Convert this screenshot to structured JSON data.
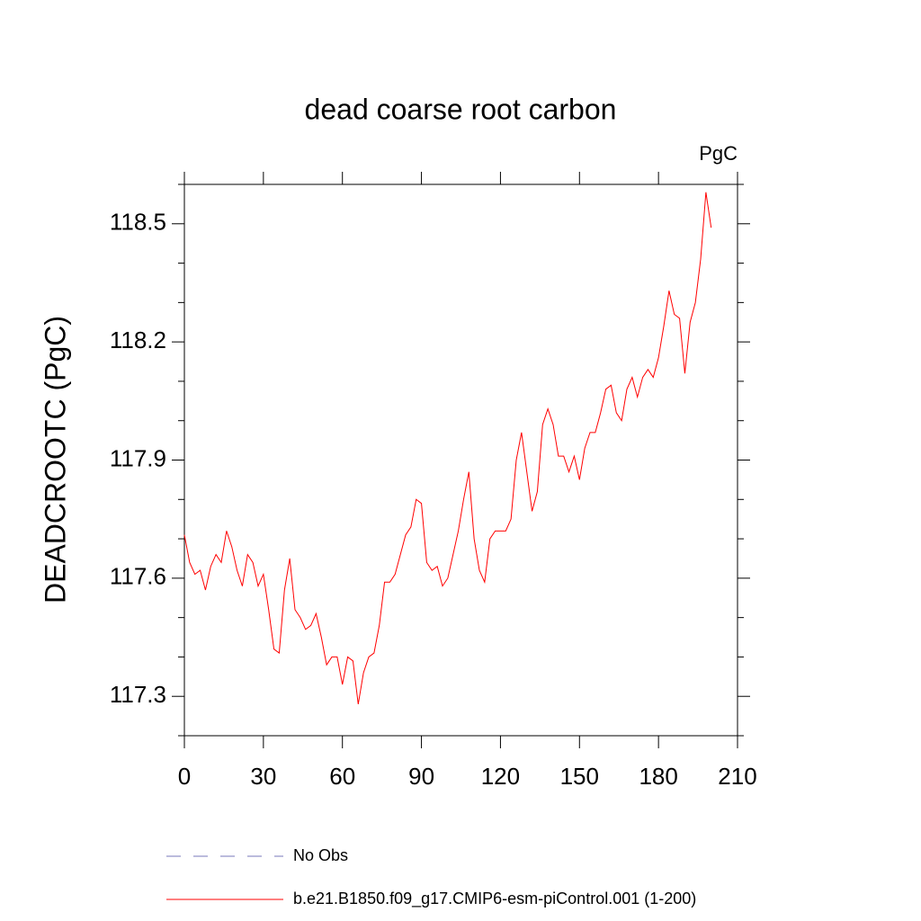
{
  "chart_data": {
    "type": "line",
    "title": "dead coarse root carbon",
    "units_label": "PgC",
    "y_label": "DEADCROOTC  (PgC)",
    "xlim": [
      0,
      210
    ],
    "xticks": [
      0,
      30,
      60,
      90,
      120,
      150,
      180,
      210
    ],
    "ylim": [
      117.2,
      118.6
    ],
    "yticks": [
      117.3,
      117.6,
      117.9,
      118.2,
      118.5
    ],
    "yminorticks": [
      117.2,
      117.4,
      117.5,
      117.7,
      117.8,
      118.0,
      118.1,
      118.3,
      118.4,
      118.6
    ],
    "reference": {
      "name": "No Obs",
      "color": "#7777bb"
    },
    "x": [
      0,
      2,
      4,
      6,
      8,
      10,
      12,
      14,
      16,
      18,
      20,
      22,
      24,
      26,
      28,
      30,
      32,
      34,
      36,
      38,
      40,
      42,
      44,
      46,
      48,
      50,
      52,
      54,
      56,
      58,
      60,
      62,
      64,
      66,
      68,
      70,
      72,
      74,
      76,
      78,
      80,
      82,
      84,
      86,
      88,
      90,
      92,
      94,
      96,
      98,
      100,
      102,
      104,
      106,
      108,
      110,
      112,
      114,
      116,
      118,
      120,
      122,
      124,
      126,
      128,
      130,
      132,
      134,
      136,
      138,
      140,
      142,
      144,
      146,
      148,
      150,
      152,
      154,
      156,
      158,
      160,
      162,
      164,
      166,
      168,
      170,
      172,
      174,
      176,
      178,
      180,
      182,
      184,
      186,
      188,
      190,
      192,
      194,
      196,
      198,
      200
    ],
    "series": [
      {
        "name": "b.e21.B1850.f09_g17.CMIP6-esm-piControl.001 (1-200)",
        "color": "#ff0000",
        "values": [
          117.71,
          117.64,
          117.61,
          117.62,
          117.57,
          117.63,
          117.66,
          117.64,
          117.72,
          117.68,
          117.62,
          117.58,
          117.66,
          117.64,
          117.58,
          117.61,
          117.52,
          117.42,
          117.41,
          117.57,
          117.65,
          117.52,
          117.5,
          117.47,
          117.48,
          117.51,
          117.45,
          117.38,
          117.4,
          117.4,
          117.33,
          117.4,
          117.39,
          117.28,
          117.36,
          117.4,
          117.41,
          117.48,
          117.59,
          117.59,
          117.61,
          117.66,
          117.71,
          117.73,
          117.8,
          117.79,
          117.64,
          117.62,
          117.63,
          117.58,
          117.6,
          117.66,
          117.72,
          117.8,
          117.87,
          117.7,
          117.62,
          117.59,
          117.7,
          117.72,
          117.72,
          117.72,
          117.75,
          117.9,
          117.97,
          117.87,
          117.77,
          117.82,
          117.99,
          118.03,
          117.99,
          117.91,
          117.91,
          117.87,
          117.91,
          117.85,
          117.93,
          117.97,
          117.97,
          118.02,
          118.08,
          118.09,
          118.02,
          118.0,
          118.08,
          118.11,
          118.06,
          118.11,
          118.13,
          118.11,
          118.16,
          118.24,
          118.33,
          118.27,
          118.26,
          118.12,
          118.25,
          118.3,
          118.41,
          118.58,
          118.49
        ]
      }
    ]
  }
}
